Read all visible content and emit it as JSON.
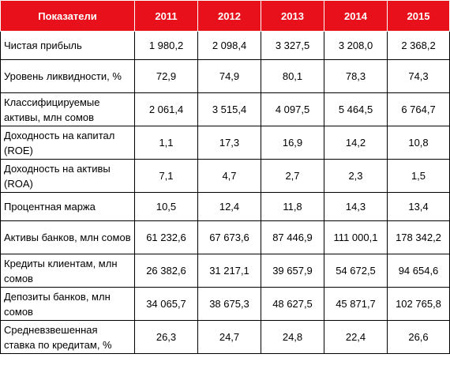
{
  "table": {
    "headers": [
      "Показатели",
      "2011",
      "2012",
      "2013",
      "2014",
      "2015"
    ],
    "rows": [
      {
        "label": "Чистая прибыль",
        "values": [
          "1 980,2",
          "2 098,4",
          "3 327,5",
          "3 208,0",
          "2 368,2"
        ]
      },
      {
        "label": "Уровень ликвидности, %",
        "values": [
          "72,9",
          "74,9",
          "80,1",
          "78,3",
          "74,3"
        ]
      },
      {
        "label": "Классифицируемые активы, млн сомов",
        "values": [
          "2 061,4",
          "3 515,4",
          "4 097,5",
          "5 464,5",
          "6 764,7"
        ]
      },
      {
        "label": "Доходность на капитал (ROE)",
        "values": [
          "1,1",
          "17,3",
          "16,9",
          "14,2",
          "10,8"
        ]
      },
      {
        "label": "Доходность на активы (ROA)",
        "values": [
          "7,1",
          "4,7",
          "2,7",
          "2,3",
          "1,5"
        ]
      },
      {
        "label": "Процентная маржа",
        "values": [
          "10,5",
          "12,4",
          "11,8",
          "14,3",
          "13,4"
        ]
      },
      {
        "label": "Активы банков, млн сомов",
        "values": [
          "61 232,6",
          "67 673,6",
          "87 446,9",
          "111 000,1",
          "178 342,2"
        ]
      },
      {
        "label": "Кредиты клиентам, млн сомов",
        "values": [
          "26 382,6",
          "31 217,1",
          "39 657,9",
          "54 672,5",
          "94 654,6"
        ]
      },
      {
        "label": "Депозиты банков, млн сомов",
        "values": [
          "34 065,7",
          "38 675,3",
          "48 627,5",
          "45 871,7",
          "102 765,8"
        ]
      },
      {
        "label": "Средневзвешенная ставка по кредитам, %",
        "values": [
          "26,3",
          "24,7",
          "24,8",
          "22,4",
          "26,6"
        ]
      }
    ]
  },
  "colors": {
    "header_background": "#e8101a",
    "header_text": "#ffffff",
    "border": "#000000"
  }
}
